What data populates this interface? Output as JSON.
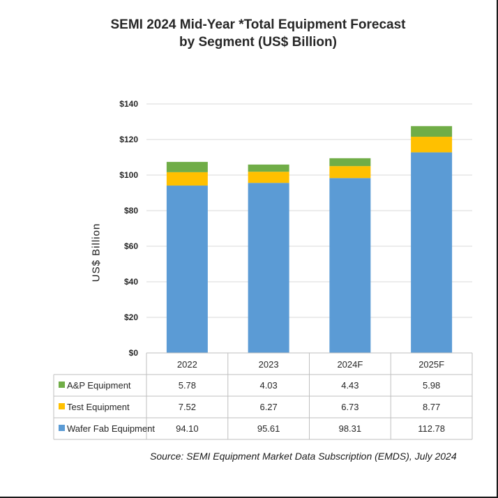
{
  "chart_data": {
    "type": "bar",
    "stacked": true,
    "title": "SEMI 2024 Mid-Year *Total Equipment Forecast",
    "subtitle": "by Segment (US$ Billion)",
    "ylabel": "US$ Billion",
    "xlabel": "",
    "ylim": [
      0,
      140
    ],
    "yticks": [
      0,
      20,
      40,
      60,
      80,
      100,
      120,
      140
    ],
    "ytick_labels": [
      "$0",
      "$20",
      "$40",
      "$60",
      "$80",
      "$100",
      "$120",
      "$140"
    ],
    "grid": true,
    "categories": [
      "2022",
      "2023",
      "2024F",
      "2025F"
    ],
    "series": [
      {
        "name": "Wafer Fab Equipment",
        "color": "#5b9bd5",
        "values": [
          94.1,
          95.61,
          98.31,
          112.78
        ],
        "labels": [
          "94.10",
          "95.61",
          "98.31",
          "112.78"
        ]
      },
      {
        "name": "Test Equipment",
        "color": "#ffc000",
        "values": [
          7.52,
          6.27,
          6.73,
          8.77
        ],
        "labels": [
          "7.52",
          "6.27",
          "6.73",
          "8.77"
        ]
      },
      {
        "name": "A&P Equipment",
        "color": "#70ad47",
        "values": [
          5.78,
          4.03,
          4.43,
          5.98
        ],
        "labels": [
          "5.78",
          "4.03",
          "4.43",
          "5.98"
        ]
      }
    ],
    "table_row_order": [
      "A&P Equipment",
      "Test Equipment",
      "Wafer Fab Equipment"
    ],
    "source": "Source: SEMI Equipment Market Data Subscription (EMDS), July 2024"
  }
}
